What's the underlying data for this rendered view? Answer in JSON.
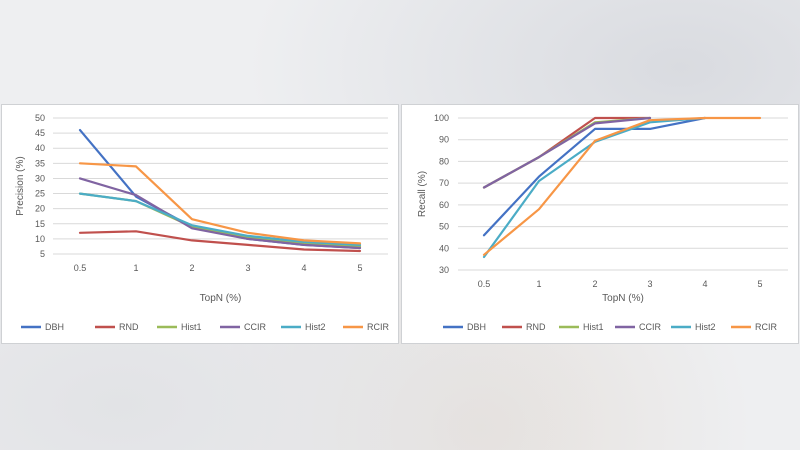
{
  "colors": {
    "DBH": "#4472c4",
    "RND": "#c0504d",
    "Hist1": "#9bbb59",
    "CCIR": "#8064a2",
    "Hist2": "#4bacc6",
    "RCIR": "#f79646",
    "grid": "#d9d9d9",
    "text": "#595959"
  },
  "chart_data": [
    {
      "type": "line",
      "title": "",
      "xlabel": "TopN (%)",
      "ylabel": "Precision (%)",
      "categories": [
        "0.5",
        "1",
        "2",
        "3",
        "4",
        "5"
      ],
      "ylim": [
        5,
        50
      ],
      "yticks": [
        "5",
        "10",
        "15",
        "20",
        "25",
        "30",
        "35",
        "40",
        "45",
        "50"
      ],
      "grid": true,
      "legend": "bottom",
      "series": [
        {
          "name": "DBH",
          "values": [
            46,
            24,
            14,
            10,
            8,
            7
          ]
        },
        {
          "name": "RND",
          "values": [
            12,
            12.5,
            9.5,
            8,
            6.5,
            6
          ]
        },
        {
          "name": "Hist1",
          "values": [
            25,
            22.5,
            14,
            10.5,
            8.5,
            7.5
          ]
        },
        {
          "name": "CCIR",
          "values": [
            30,
            24.5,
            13.5,
            10,
            8,
            7
          ]
        },
        {
          "name": "Hist2",
          "values": [
            25,
            22.5,
            14.5,
            11,
            9,
            8
          ]
        },
        {
          "name": "RCIR",
          "values": [
            35,
            34,
            16.5,
            12,
            9.5,
            8.5
          ]
        }
      ]
    },
    {
      "type": "line",
      "title": "",
      "xlabel": "TopN (%)",
      "ylabel": "Recall (%)",
      "categories": [
        "0.5",
        "1",
        "2",
        "3",
        "4",
        "5"
      ],
      "ylim": [
        30,
        100
      ],
      "yticks": [
        "30",
        "40",
        "50",
        "60",
        "70",
        "80",
        "90",
        "100"
      ],
      "grid": true,
      "legend": "bottom",
      "series": [
        {
          "name": "DBH",
          "values": [
            46,
            73,
            95,
            95,
            100,
            null
          ]
        },
        {
          "name": "RND",
          "values": [
            68,
            82,
            100,
            100,
            null,
            null
          ]
        },
        {
          "name": "Hist1",
          "values": [
            68,
            82,
            98,
            100,
            null,
            null
          ]
        },
        {
          "name": "CCIR",
          "values": [
            68,
            82,
            97.5,
            100,
            null,
            null
          ]
        },
        {
          "name": "Hist2",
          "values": [
            36,
            71,
            89,
            98,
            100,
            null
          ]
        },
        {
          "name": "RCIR",
          "values": [
            37,
            58,
            89.5,
            99,
            100,
            100
          ]
        }
      ]
    }
  ]
}
